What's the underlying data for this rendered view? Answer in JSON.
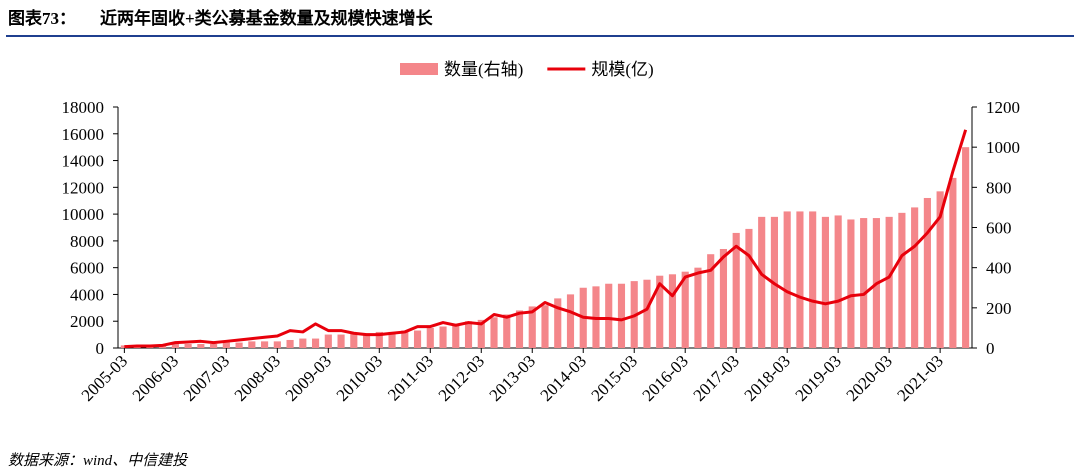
{
  "header": {
    "label": "图表73：",
    "title": "近两年固收+类公募基金数量及规模快速增长"
  },
  "source": "数据来源：wind、中信建投",
  "chart_data": {
    "type": "bar_line",
    "categories": [
      "2005-03",
      null,
      null,
      null,
      "2006-03",
      null,
      null,
      null,
      "2007-03",
      null,
      null,
      null,
      "2008-03",
      null,
      null,
      null,
      "2009-03",
      null,
      null,
      null,
      "2010-03",
      null,
      null,
      null,
      "2011-03",
      null,
      null,
      null,
      "2012-03",
      null,
      null,
      null,
      "2013-03",
      null,
      null,
      null,
      "2014-03",
      null,
      null,
      null,
      "2015-03",
      null,
      null,
      null,
      "2016-03",
      null,
      null,
      null,
      "2017-03",
      null,
      null,
      null,
      "2018-03",
      null,
      null,
      null,
      "2019-03",
      null,
      null,
      null,
      "2020-03",
      null,
      null,
      null,
      "2021-03",
      null,
      null
    ],
    "series": [
      {
        "name": "数量(右轴)",
        "type": "bar",
        "axis": "y2",
        "color": "#f4868a",
        "values": [
          13,
          13,
          13,
          13,
          20,
          20,
          20,
          20,
          27,
          27,
          33,
          33,
          33,
          40,
          47,
          47,
          67,
          67,
          73,
          73,
          80,
          80,
          87,
          87,
          100,
          107,
          120,
          133,
          140,
          153,
          167,
          187,
          207,
          213,
          247,
          267,
          300,
          307,
          320,
          320,
          333,
          340,
          360,
          367,
          380,
          400,
          467,
          493,
          573,
          593,
          653,
          653,
          680,
          680,
          680,
          653,
          660,
          640,
          647,
          647,
          653,
          673,
          700,
          747,
          780,
          847,
          1000
        ]
      },
      {
        "name": "规模(亿)",
        "type": "line",
        "axis": "y",
        "color": "#e8000b",
        "values": [
          100,
          150,
          150,
          200,
          400,
          450,
          500,
          400,
          500,
          600,
          700,
          800,
          900,
          1300,
          1200,
          1800,
          1300,
          1300,
          1100,
          1000,
          1000,
          1100,
          1200,
          1600,
          1600,
          1900,
          1700,
          1900,
          1800,
          2500,
          2300,
          2600,
          2700,
          3400,
          3000,
          2700,
          2300,
          2200,
          2200,
          2100,
          2400,
          2900,
          4800,
          3900,
          5300,
          5600,
          5800,
          6800,
          7600,
          6900,
          5500,
          4800,
          4200,
          3800,
          3500,
          3300,
          3500,
          3900,
          4000,
          4800,
          5300,
          6900,
          7600,
          8600,
          9800,
          13200,
          16300
        ]
      }
    ],
    "ylim": [
      0,
      18000
    ],
    "yticks": [
      0,
      2000,
      4000,
      6000,
      8000,
      10000,
      12000,
      14000,
      16000,
      18000
    ],
    "y2lim": [
      0,
      1200
    ],
    "y2ticks": [
      0,
      200,
      400,
      600,
      800,
      1000,
      1200
    ],
    "legend": "top"
  }
}
